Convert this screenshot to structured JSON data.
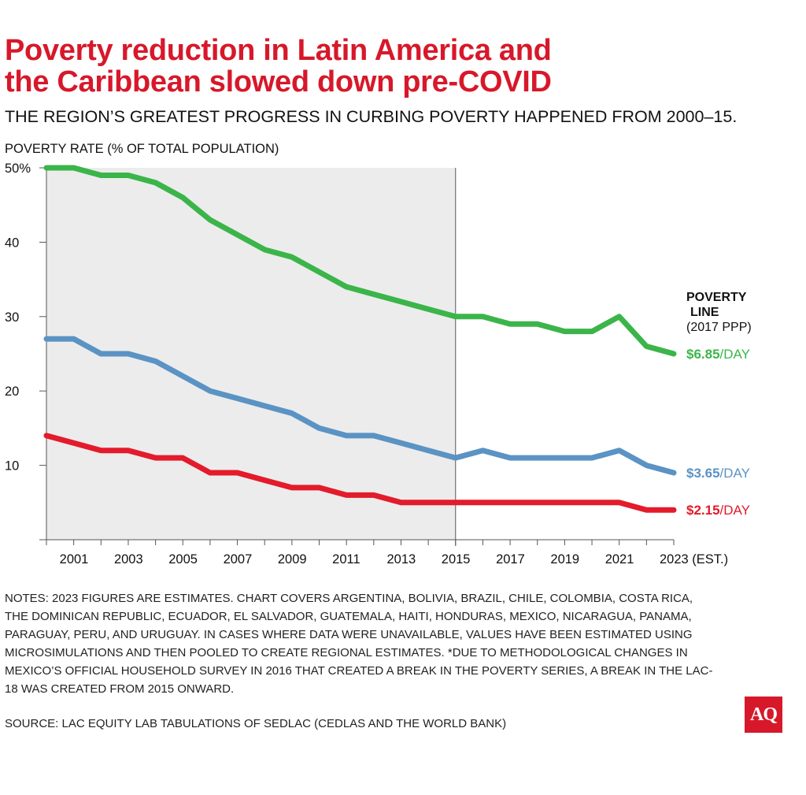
{
  "chart_data": {
    "type": "line",
    "title": "Poverty reduction in Latin America and the Caribbean slowed down pre-COVID",
    "subtitle": "THE REGION’S GREATEST PROGRESS IN CURBING POVERTY HAPPENED FROM 2000–15.",
    "ylabel": "POVERTY RATE (% OF TOTAL POPULATION)",
    "xlabel": "",
    "x": [
      2000,
      2001,
      2002,
      2003,
      2004,
      2005,
      2006,
      2007,
      2008,
      2009,
      2010,
      2011,
      2012,
      2013,
      2014,
      2015,
      2016,
      2017,
      2018,
      2019,
      2020,
      2021,
      2022,
      2023
    ],
    "xlim": [
      2000,
      2023
    ],
    "ylim": [
      0,
      50
    ],
    "x_tick_labels": [
      "2001",
      "2003",
      "2005",
      "2007",
      "2009",
      "2011",
      "2013",
      "2015",
      "2017",
      "2019",
      "2021",
      "2023 (EST.)"
    ],
    "y_tick_labels": [
      "50%",
      "40",
      "30",
      "20",
      "10"
    ],
    "y_ticks": [
      50,
      40,
      30,
      20,
      10,
      0
    ],
    "shaded_region": [
      2000,
      2015
    ],
    "grid": false,
    "legend_title": [
      "POVERTY",
      "LINE",
      "(2017 PPP)"
    ],
    "legend_placement": "right (direct labels)",
    "series": [
      {
        "name_bold": "$6.85",
        "name_suffix": "/DAY",
        "color": "#3bb54a",
        "values": [
          50,
          50,
          49,
          49,
          48,
          46,
          43,
          41,
          39,
          38,
          36,
          34,
          33,
          32,
          31,
          30,
          30,
          29,
          29,
          28,
          28,
          30,
          26,
          25
        ]
      },
      {
        "name_bold": "$3.65",
        "name_suffix": "/DAY",
        "color": "#5a93c4",
        "values": [
          27,
          27,
          25,
          25,
          24,
          22,
          20,
          19,
          18,
          17,
          15,
          14,
          14,
          13,
          12,
          11,
          12,
          11,
          11,
          11,
          11,
          12,
          10,
          9
        ]
      },
      {
        "name_bold": "$2.15",
        "name_suffix": "/DAY",
        "color": "#e31b2b",
        "values": [
          14,
          13,
          12,
          12,
          11,
          11,
          9,
          9,
          8,
          7,
          7,
          6,
          6,
          5,
          5,
          5,
          5,
          5,
          5,
          5,
          5,
          5,
          4,
          4
        ]
      }
    ]
  },
  "title_lines": [
    "Poverty reduction in Latin America and",
    "the Caribbean slowed down pre-COVID"
  ],
  "notes": "NOTES: 2023 FIGURES ARE ESTIMATES. CHART COVERS ARGENTINA, BOLIVIA, BRAZIL, CHILE, COLOMBIA, COSTA RICA, THE DOMINICAN REPUBLIC, ECUADOR, EL SALVADOR, GUATEMALA, HAITI, HONDURAS, MEXICO, NICARAGUA, PANAMA, PARAGUAY, PERU, AND URUGUAY. IN CASES WHERE DATA WERE UNAVAILABLE, VALUES HAVE BEEN ESTIMATED USING MICROSIMULATIONS AND THEN POOLED TO CREATE REGIONAL ESTIMATES. *DUE TO METHODOLOGICAL CHANGES IN MEXICO’S OFFICIAL HOUSEHOLD SURVEY IN 2016 THAT CREATED A BREAK IN THE POVERTY SERIES, A BREAK IN THE LAC-18 WAS CREATED FROM 2015 ONWARD.",
  "source": "SOURCE: LAC EQUITY LAB TABULATIONS OF SEDLAC (CEDLAS AND THE WORLD BANK)",
  "logo": "AQ"
}
